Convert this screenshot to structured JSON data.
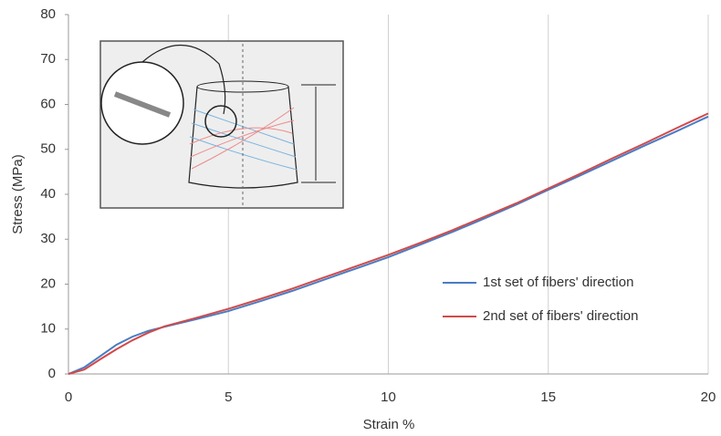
{
  "chart_data": {
    "type": "line",
    "x_label": "Strain %",
    "y_label": "Stress (MPa)",
    "x": [
      0,
      0.5,
      1,
      1.5,
      2,
      2.5,
      3,
      4,
      5,
      6,
      7,
      8,
      9,
      10,
      11,
      12,
      13,
      14,
      15,
      16,
      17,
      18,
      19,
      20
    ],
    "series": [
      {
        "name": "1st set of fibers' direction",
        "color": "#4a7cc4",
        "values": [
          0,
          1.5,
          4,
          6.5,
          8.3,
          9.6,
          10.5,
          12.2,
          14,
          16.2,
          18.5,
          21,
          23.5,
          26,
          28.8,
          31.6,
          34.6,
          37.7,
          41,
          44.2,
          47.5,
          50.8,
          54,
          57.3
        ]
      },
      {
        "name": "2nd set of fibers' direction",
        "color": "#d14a4a",
        "values": [
          0,
          1,
          3.3,
          5.5,
          7.5,
          9.2,
          10.6,
          12.5,
          14.5,
          16.7,
          19,
          21.5,
          24,
          26.5,
          29.2,
          32,
          35,
          38,
          41.3,
          44.6,
          48,
          51.3,
          54.7,
          58
        ]
      }
    ],
    "xlim": [
      0,
      20
    ],
    "xticks": [
      0,
      5,
      10,
      15,
      20
    ],
    "ylim": [
      0,
      80
    ],
    "yticks": [
      0,
      10,
      20,
      30,
      40,
      50,
      60,
      70,
      80
    ],
    "grid": "x"
  }
}
